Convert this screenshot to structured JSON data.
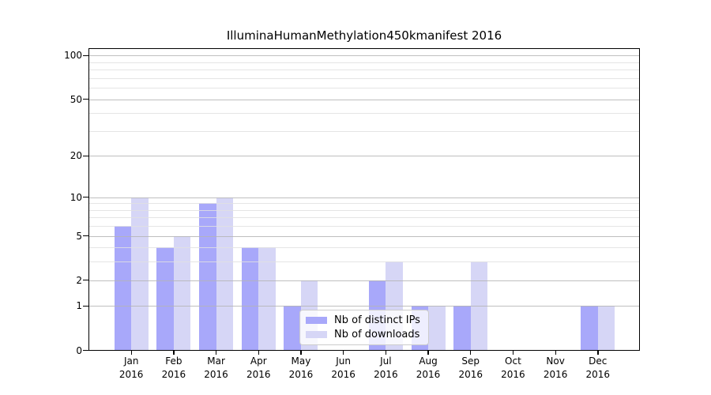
{
  "chart_data": {
    "type": "bar",
    "title": "IlluminaHumanMethylation450kmanifest 2016",
    "categories": [
      "Jan",
      "Feb",
      "Mar",
      "Apr",
      "May",
      "Jun",
      "Jul",
      "Aug",
      "Sep",
      "Oct",
      "Nov",
      "Dec"
    ],
    "category_year": "2016",
    "series": [
      {
        "name": "Nb of distinct IPs",
        "color": "#a8a8fa",
        "values": [
          6,
          4,
          9,
          4,
          1,
          0,
          2,
          1,
          1,
          0,
          0,
          1
        ]
      },
      {
        "name": "Nb of downloads",
        "color": "#d6d6f6",
        "values": [
          10,
          5,
          10,
          4,
          2,
          0,
          3,
          1,
          3,
          0,
          0,
          1
        ]
      }
    ],
    "yscale": "log1p",
    "ytick_labels": [
      "0",
      "1",
      "2",
      "5",
      "10",
      "20",
      "50",
      "100"
    ],
    "ytick_values": [
      0,
      1,
      2,
      5,
      10,
      20,
      50,
      100
    ],
    "minor_grid_values": [
      3,
      4,
      6,
      7,
      8,
      9,
      30,
      40,
      60,
      70,
      80,
      90
    ],
    "ylim": [
      0,
      112
    ],
    "grid": true,
    "legend_position": "inside lower center"
  },
  "legend": {
    "items": [
      {
        "label": "Nb of distinct IPs",
        "color": "#a8a8fa"
      },
      {
        "label": "Nb of downloads",
        "color": "#d6d6f6"
      }
    ]
  }
}
